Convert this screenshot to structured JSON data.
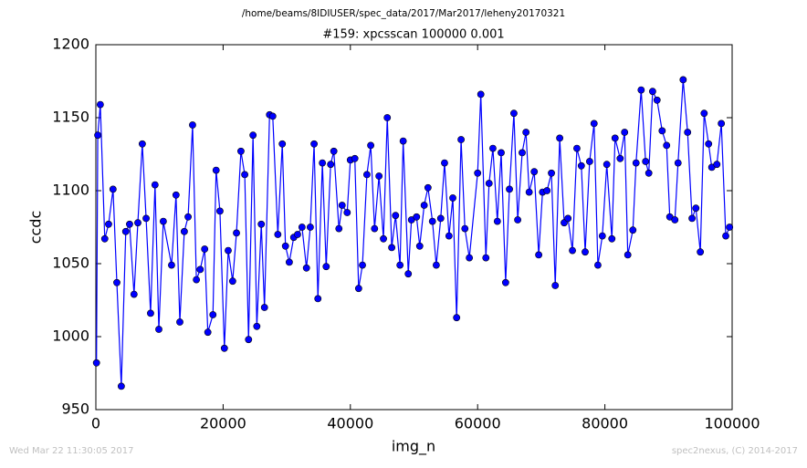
{
  "chart_data": {
    "type": "line",
    "suptitle": "/home/beams/8IDIUSER/spec_data/2017/Mar2017/leheny20170321",
    "title": "#159: xpcsscan 100000 0.001",
    "x_label": "img_n",
    "y_label": "ccdc",
    "footer_left": "Wed Mar 22 11:30:05 2017",
    "footer_right": "spec2nexus, (C) 2014-2017",
    "xlim": [
      0,
      100000
    ],
    "ylim": [
      950,
      1200
    ],
    "xticks": [
      0,
      20000,
      40000,
      60000,
      80000,
      100000
    ],
    "yticks": [
      950,
      1000,
      1050,
      1100,
      1150,
      1200
    ],
    "grid": false,
    "x": [
      100,
      300,
      700,
      1400,
      2000,
      2700,
      3300,
      4000,
      4700,
      5300,
      6000,
      6600,
      7300,
      7900,
      8600,
      9300,
      9900,
      10600,
      11900,
      12600,
      13200,
      13900,
      14500,
      15200,
      15800,
      16400,
      17100,
      17600,
      18400,
      18900,
      19500,
      20200,
      20800,
      21500,
      22100,
      22800,
      23400,
      24000,
      24700,
      25300,
      26000,
      26500,
      27300,
      27800,
      28600,
      29300,
      29800,
      30400,
      31100,
      31700,
      32400,
      33100,
      33700,
      34300,
      34900,
      35600,
      36200,
      36900,
      37400,
      38200,
      38700,
      39500,
      40000,
      40700,
      41300,
      41900,
      42600,
      43200,
      43800,
      44500,
      45200,
      45800,
      46500,
      47100,
      47800,
      48300,
      49100,
      49600,
      50400,
      50900,
      51600,
      52200,
      52900,
      53500,
      54200,
      54800,
      55500,
      56100,
      56700,
      57400,
      58000,
      58700,
      60000,
      60500,
      61300,
      61800,
      62400,
      63100,
      63700,
      64400,
      65000,
      65700,
      66300,
      67000,
      67600,
      68100,
      68900,
      69600,
      70200,
      70900,
      71600,
      72200,
      72900,
      73600,
      74200,
      74900,
      75600,
      76300,
      76900,
      77600,
      78300,
      78900,
      79600,
      80300,
      81100,
      81600,
      82400,
      83100,
      83600,
      84400,
      84900,
      85700,
      86400,
      86900,
      87500,
      88200,
      89000,
      89700,
      90200,
      91000,
      91500,
      92300,
      93000,
      93700,
      94300,
      95000,
      95600,
      96300,
      96800,
      97600,
      98300,
      99000,
      99600
    ],
    "series": [
      {
        "name": "ccdc",
        "color": "#0000ff",
        "values": [
          982,
          1138,
          1159,
          1067,
          1077,
          1101,
          1037,
          966,
          1072,
          1077,
          1029,
          1078,
          1132,
          1081,
          1016,
          1104,
          1005,
          1079,
          1049,
          1097,
          1010,
          1072,
          1082,
          1145,
          1039,
          1046,
          1060,
          1003,
          1015,
          1114,
          1086,
          992,
          1059,
          1038,
          1071,
          1127,
          1111,
          998,
          1138,
          1007,
          1077,
          1020,
          1152,
          1151,
          1070,
          1132,
          1062,
          1051,
          1068,
          1070,
          1075,
          1047,
          1075,
          1132,
          1026,
          1119,
          1048,
          1118,
          1127,
          1074,
          1090,
          1085,
          1121,
          1122,
          1033,
          1049,
          1111,
          1131,
          1074,
          1110,
          1067,
          1150,
          1061,
          1083,
          1049,
          1134,
          1043,
          1080,
          1082,
          1062,
          1090,
          1102,
          1079,
          1049,
          1081,
          1119,
          1069,
          1095,
          1013,
          1135,
          1074,
          1054,
          1112,
          1166,
          1054,
          1105,
          1129,
          1079,
          1126,
          1037,
          1101,
          1153,
          1080,
          1126,
          1140,
          1099,
          1113,
          1056,
          1099,
          1100,
          1112,
          1035,
          1136,
          1078,
          1081,
          1059,
          1129,
          1117,
          1058,
          1120,
          1146,
          1049,
          1069,
          1118,
          1067,
          1136,
          1122,
          1140,
          1056,
          1073,
          1119,
          1169,
          1120,
          1112,
          1168,
          1162,
          1141,
          1131,
          1082,
          1080,
          1119,
          1176,
          1140,
          1081,
          1088,
          1058,
          1153,
          1132,
          1116,
          1118,
          1146,
          1069,
          1075
        ]
      }
    ]
  }
}
